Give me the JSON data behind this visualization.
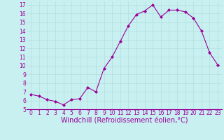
{
  "x": [
    0,
    1,
    2,
    3,
    4,
    5,
    6,
    7,
    8,
    9,
    10,
    11,
    12,
    13,
    14,
    15,
    16,
    17,
    18,
    19,
    20,
    21,
    22,
    23
  ],
  "y": [
    6.7,
    6.5,
    6.1,
    5.9,
    5.5,
    6.1,
    6.2,
    7.5,
    7.0,
    9.7,
    11.0,
    12.8,
    14.6,
    15.9,
    16.3,
    17.0,
    15.6,
    16.4,
    16.4,
    16.2,
    15.5,
    14.0,
    11.5,
    10.1
  ],
  "line_color": "#990099",
  "marker": "D",
  "marker_size": 2,
  "bg_color": "#c8f0f0",
  "grid_color": "#b0dede",
  "xlabel": "Windchill (Refroidissement éolien,°C)",
  "xlabel_color": "#990099",
  "tick_color": "#990099",
  "ylim": [
    5,
    17.4
  ],
  "yticks": [
    5,
    6,
    7,
    8,
    9,
    10,
    11,
    12,
    13,
    14,
    15,
    16,
    17
  ],
  "xticks": [
    0,
    1,
    2,
    3,
    4,
    5,
    6,
    7,
    8,
    9,
    10,
    11,
    12,
    13,
    14,
    15,
    16,
    17,
    18,
    19,
    20,
    21,
    22,
    23
  ],
  "tick_fontsize": 5.5,
  "xlabel_fontsize": 7.0,
  "linewidth": 0.8
}
